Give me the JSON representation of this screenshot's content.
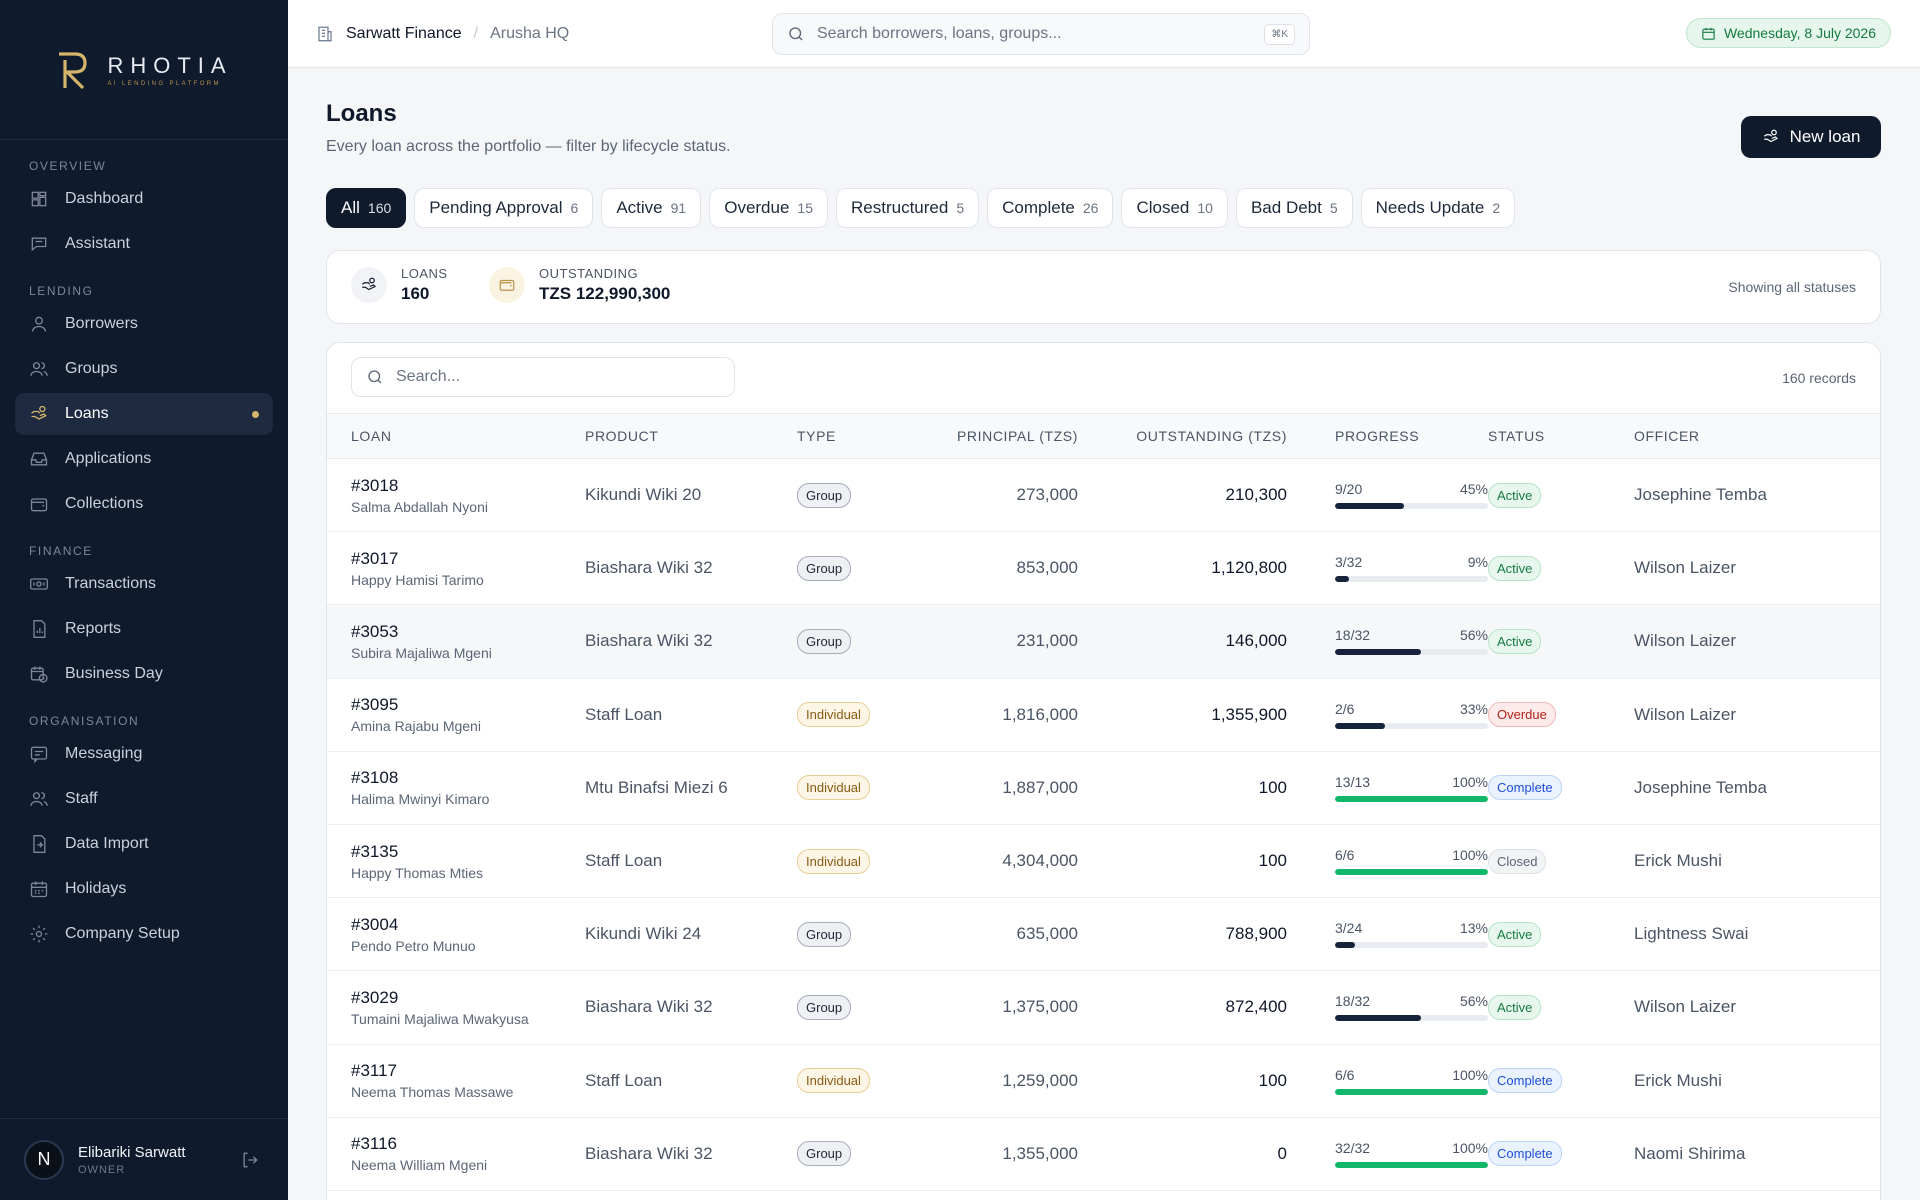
{
  "brand": {
    "name": "RHOTIA",
    "tagline": "AI LENDING PLATFORM"
  },
  "sidebar": {
    "sections": [
      {
        "title": "OVERVIEW",
        "items": [
          {
            "label": "Dashboard",
            "icon": "grid-icon"
          },
          {
            "label": "Assistant",
            "icon": "chat-icon"
          }
        ]
      },
      {
        "title": "LENDING",
        "items": [
          {
            "label": "Borrowers",
            "icon": "user-icon"
          },
          {
            "label": "Groups",
            "icon": "users-icon"
          },
          {
            "label": "Loans",
            "icon": "hand-coins-icon",
            "active": true
          },
          {
            "label": "Applications",
            "icon": "inbox-icon"
          },
          {
            "label": "Collections",
            "icon": "wallet-icon"
          }
        ]
      },
      {
        "title": "FINANCE",
        "items": [
          {
            "label": "Transactions",
            "icon": "banknote-icon"
          },
          {
            "label": "Reports",
            "icon": "file-chart-icon"
          },
          {
            "label": "Business Day",
            "icon": "calendar-clock-icon"
          }
        ]
      },
      {
        "title": "ORGANISATION",
        "items": [
          {
            "label": "Messaging",
            "icon": "message-square-icon"
          },
          {
            "label": "Staff",
            "icon": "users-icon"
          },
          {
            "label": "Data Import",
            "icon": "file-import-icon"
          },
          {
            "label": "Holidays",
            "icon": "calendar-icon"
          },
          {
            "label": "Company Setup",
            "icon": "gear-icon"
          }
        ]
      }
    ],
    "user": {
      "initial": "N",
      "name": "Elibariki Sarwatt",
      "role": "OWNER"
    }
  },
  "topbar": {
    "org": "Sarwatt Finance",
    "separator": "/",
    "branch": "Arusha HQ",
    "search_placeholder": "Search borrowers, loans, groups...",
    "search_shortcut": "⌘K",
    "date": "Wednesday, 8 July 2026"
  },
  "page": {
    "title": "Loans",
    "subtitle": "Every loan across the portfolio — filter by lifecycle status.",
    "new_button": "New loan"
  },
  "tabs": [
    {
      "label": "All",
      "count": "160",
      "active": true
    },
    {
      "label": "Pending Approval",
      "count": "6"
    },
    {
      "label": "Active",
      "count": "91"
    },
    {
      "label": "Overdue",
      "count": "15"
    },
    {
      "label": "Restructured",
      "count": "5"
    },
    {
      "label": "Complete",
      "count": "26"
    },
    {
      "label": "Closed",
      "count": "10"
    },
    {
      "label": "Bad Debt",
      "count": "5"
    },
    {
      "label": "Needs Update",
      "count": "2"
    }
  ],
  "summary": {
    "loans_label": "LOANS",
    "loans_value": "160",
    "outstanding_label": "OUTSTANDING",
    "outstanding_value": "TZS 122,990,300",
    "note": "Showing all statuses"
  },
  "table": {
    "search_placeholder": "Search...",
    "records": "160 records",
    "columns": [
      "LOAN",
      "PRODUCT",
      "TYPE",
      "PRINCIPAL (TZS)",
      "OUTSTANDING (TZS)",
      "PROGRESS",
      "STATUS",
      "OFFICER"
    ],
    "colors": {
      "bar_active": "#16233a",
      "bar_complete": "#12b76a"
    },
    "rows": [
      {
        "id": "#3018",
        "name": "Salma Abdallah Nyoni",
        "product": "Kikundi Wiki 20",
        "type": "Group",
        "principal": "273,000",
        "outstanding": "210,300",
        "installments": "9/20",
        "pct": "45%",
        "status": "Active",
        "officer": "Josephine Temba"
      },
      {
        "id": "#3017",
        "name": "Happy Hamisi Tarimo",
        "product": "Biashara Wiki 32",
        "type": "Group",
        "principal": "853,000",
        "outstanding": "1,120,800",
        "installments": "3/32",
        "pct": "9%",
        "status": "Active",
        "officer": "Wilson Laizer"
      },
      {
        "id": "#3053",
        "name": "Subira Majaliwa Mgeni",
        "product": "Biashara Wiki 32",
        "type": "Group",
        "principal": "231,000",
        "outstanding": "146,000",
        "installments": "18/32",
        "pct": "56%",
        "status": "Active",
        "officer": "Wilson Laizer",
        "highlight": true
      },
      {
        "id": "#3095",
        "name": "Amina Rajabu Mgeni",
        "product": "Staff Loan",
        "type": "Individual",
        "principal": "1,816,000",
        "outstanding": "1,355,900",
        "installments": "2/6",
        "pct": "33%",
        "status": "Overdue",
        "officer": "Wilson Laizer"
      },
      {
        "id": "#3108",
        "name": "Halima Mwinyi Kimaro",
        "product": "Mtu Binafsi Miezi 6",
        "type": "Individual",
        "principal": "1,887,000",
        "outstanding": "100",
        "installments": "13/13",
        "pct": "100%",
        "status": "Complete",
        "officer": "Josephine Temba"
      },
      {
        "id": "#3135",
        "name": "Happy Thomas Mties",
        "product": "Staff Loan",
        "type": "Individual",
        "principal": "4,304,000",
        "outstanding": "100",
        "installments": "6/6",
        "pct": "100%",
        "status": "Closed",
        "officer": "Erick Mushi"
      },
      {
        "id": "#3004",
        "name": "Pendo Petro Munuo",
        "product": "Kikundi Wiki 24",
        "type": "Group",
        "principal": "635,000",
        "outstanding": "788,900",
        "installments": "3/24",
        "pct": "13%",
        "status": "Active",
        "officer": "Lightness Swai"
      },
      {
        "id": "#3029",
        "name": "Tumaini Majaliwa Mwakyusa",
        "product": "Biashara Wiki 32",
        "type": "Group",
        "principal": "1,375,000",
        "outstanding": "872,400",
        "installments": "18/32",
        "pct": "56%",
        "status": "Active",
        "officer": "Wilson Laizer"
      },
      {
        "id": "#3117",
        "name": "Neema Thomas Massawe",
        "product": "Staff Loan",
        "type": "Individual",
        "principal": "1,259,000",
        "outstanding": "100",
        "installments": "6/6",
        "pct": "100%",
        "status": "Complete",
        "officer": "Erick Mushi"
      },
      {
        "id": "#3116",
        "name": "Neema William Mgeni",
        "product": "Biashara Wiki 32",
        "type": "Group",
        "principal": "1,355,000",
        "outstanding": "0",
        "installments": "32/32",
        "pct": "100%",
        "status": "Complete",
        "officer": "Naomi Shirima"
      }
    ]
  }
}
